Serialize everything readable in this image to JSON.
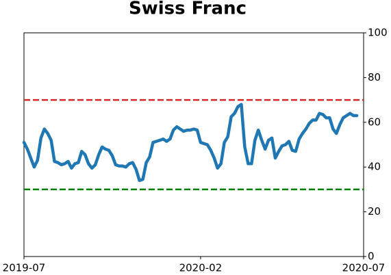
{
  "chart_data": {
    "type": "line",
    "title": "Swiss Franc",
    "series": [
      {
        "color": "#1f77b4",
        "values": [
          51,
          48,
          44,
          40,
          43,
          53,
          57,
          55,
          52,
          42.5,
          42,
          41,
          41.5,
          42.5,
          39.5,
          41.5,
          42,
          47,
          45.5,
          41.5,
          39.5,
          41,
          45.5,
          49,
          48,
          47.5,
          45,
          41,
          40.5,
          40.5,
          40,
          41.5,
          42,
          39,
          34,
          34.5,
          42,
          44.5,
          51,
          51.5,
          52,
          52.5,
          51.5,
          52.5,
          56.5,
          58,
          57,
          56,
          56.5,
          56.5,
          57,
          56.5,
          51,
          50.5,
          50,
          47.5,
          44,
          39.5,
          41.5,
          51,
          53.5,
          62.5,
          64,
          67,
          68,
          49,
          41.5,
          41.5,
          52,
          56.5,
          52,
          48,
          52,
          53,
          44,
          47,
          49.5,
          50,
          51.5,
          47.5,
          47,
          52.5,
          55,
          57,
          59.5,
          61,
          61,
          64,
          63.5,
          62,
          62,
          57,
          55,
          59,
          62,
          63,
          64,
          63,
          63
        ]
      }
    ],
    "hlines": [
      {
        "value": 70,
        "color": "#d62728"
      },
      {
        "value": 30,
        "color": "#008000"
      }
    ],
    "xlim": [
      0,
      100
    ],
    "xticks": [
      {
        "value": 0,
        "label": "2019-07"
      },
      {
        "value": 52,
        "label": "2020-02"
      },
      {
        "value": 100,
        "label": "2020-07"
      }
    ],
    "ylim": [
      0,
      100
    ],
    "yticks": [
      0,
      20,
      40,
      60,
      80,
      100
    ]
  }
}
